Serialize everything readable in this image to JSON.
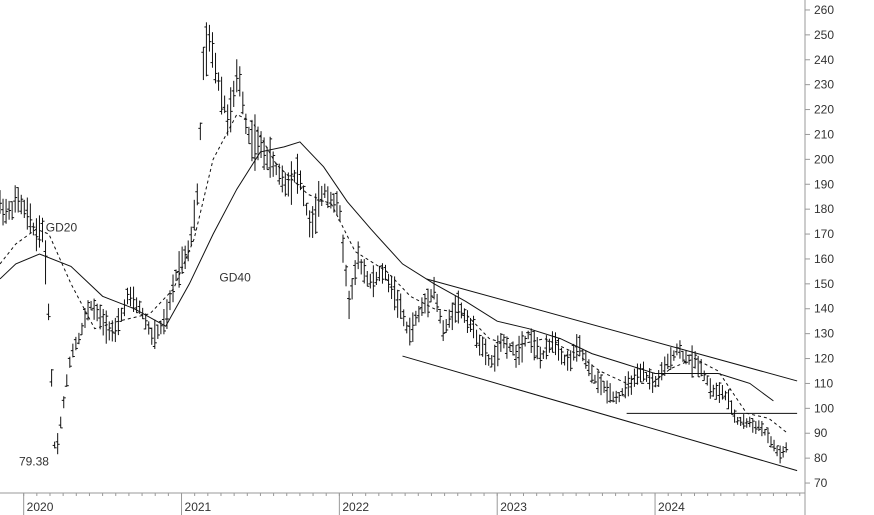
{
  "chart_data": {
    "type": "ohlc",
    "title": "",
    "xlabel": "",
    "ylabel": "",
    "ylim": [
      66,
      264
    ],
    "xlim": [
      2019.85,
      2024.95
    ],
    "y_ticks": [
      70,
      80,
      90,
      100,
      110,
      120,
      130,
      140,
      150,
      160,
      170,
      180,
      190,
      200,
      210,
      220,
      230,
      240,
      250,
      260
    ],
    "x_ticks": [
      {
        "label": "2020",
        "x": 2020.0
      },
      {
        "label": "2021",
        "x": 2021.0
      },
      {
        "label": "2022",
        "x": 2022.0
      },
      {
        "label": "2023",
        "x": 2023.0
      },
      {
        "label": "2024",
        "x": 2024.0
      }
    ],
    "grid": false,
    "colors": {
      "price": "#111111",
      "lines": "#111111",
      "axis": "#999999"
    },
    "price_points": [
      [
        2019.85,
        182
      ],
      [
        2019.9,
        178
      ],
      [
        2019.96,
        184
      ],
      [
        2020.02,
        178
      ],
      [
        2020.08,
        170
      ],
      [
        2020.12,
        172
      ],
      [
        2020.15,
        150
      ],
      [
        2020.2,
        80
      ],
      [
        2020.26,
        105
      ],
      [
        2020.3,
        122
      ],
      [
        2020.36,
        130
      ],
      [
        2020.42,
        142
      ],
      [
        2020.5,
        135
      ],
      [
        2020.58,
        130
      ],
      [
        2020.66,
        145
      ],
      [
        2020.74,
        140
      ],
      [
        2020.82,
        128
      ],
      [
        2020.9,
        135
      ],
      [
        2020.97,
        155
      ],
      [
        2021.05,
        165
      ],
      [
        2021.1,
        185
      ],
      [
        2021.14,
        240
      ],
      [
        2021.18,
        248
      ],
      [
        2021.24,
        230
      ],
      [
        2021.3,
        215
      ],
      [
        2021.36,
        235
      ],
      [
        2021.42,
        210
      ],
      [
        2021.5,
        205
      ],
      [
        2021.58,
        198
      ],
      [
        2021.66,
        190
      ],
      [
        2021.74,
        195
      ],
      [
        2021.82,
        172
      ],
      [
        2021.9,
        188
      ],
      [
        2022.0,
        180
      ],
      [
        2022.06,
        142
      ],
      [
        2022.12,
        160
      ],
      [
        2022.2,
        150
      ],
      [
        2022.28,
        155
      ],
      [
        2022.36,
        145
      ],
      [
        2022.44,
        130
      ],
      [
        2022.52,
        140
      ],
      [
        2022.6,
        148
      ],
      [
        2022.66,
        130
      ],
      [
        2022.74,
        142
      ],
      [
        2022.82,
        135
      ],
      [
        2022.9,
        125
      ],
      [
        2022.96,
        118
      ],
      [
        2023.04,
        127
      ],
      [
        2023.12,
        122
      ],
      [
        2023.2,
        130
      ],
      [
        2023.28,
        120
      ],
      [
        2023.36,
        128
      ],
      [
        2023.44,
        118
      ],
      [
        2023.52,
        125
      ],
      [
        2023.6,
        113
      ],
      [
        2023.68,
        108
      ],
      [
        2023.76,
        104
      ],
      [
        2023.84,
        110
      ],
      [
        2023.92,
        114
      ],
      [
        2024.0,
        110
      ],
      [
        2024.08,
        118
      ],
      [
        2024.14,
        124
      ],
      [
        2024.2,
        120
      ],
      [
        2024.28,
        118
      ],
      [
        2024.36,
        107
      ],
      [
        2024.44,
        106
      ],
      [
        2024.52,
        95
      ],
      [
        2024.6,
        94
      ],
      [
        2024.68,
        92
      ],
      [
        2024.76,
        84
      ],
      [
        2024.8,
        81
      ],
      [
        2024.84,
        85
      ]
    ],
    "series": [
      {
        "name": "GD20",
        "style": "dashed",
        "points": [
          [
            2019.85,
            158
          ],
          [
            2019.95,
            166
          ],
          [
            2020.08,
            172
          ],
          [
            2020.16,
            170
          ],
          [
            2020.3,
            150
          ],
          [
            2020.45,
            132
          ],
          [
            2020.6,
            135
          ],
          [
            2020.8,
            138
          ],
          [
            2020.95,
            148
          ],
          [
            2021.08,
            168
          ],
          [
            2021.2,
            200
          ],
          [
            2021.35,
            218
          ],
          [
            2021.45,
            215
          ],
          [
            2021.6,
            198
          ],
          [
            2021.8,
            186
          ],
          [
            2021.95,
            182
          ],
          [
            2022.1,
            163
          ],
          [
            2022.3,
            155
          ],
          [
            2022.45,
            145
          ],
          [
            2022.6,
            140
          ],
          [
            2022.8,
            138
          ],
          [
            2022.95,
            128
          ],
          [
            2023.1,
            125
          ],
          [
            2023.3,
            128
          ],
          [
            2023.5,
            122
          ],
          [
            2023.65,
            115
          ],
          [
            2023.82,
            110
          ],
          [
            2023.98,
            110
          ],
          [
            2024.1,
            116
          ],
          [
            2024.25,
            120
          ],
          [
            2024.4,
            115
          ],
          [
            2024.58,
            98
          ],
          [
            2024.72,
            96
          ],
          [
            2024.84,
            90
          ]
        ]
      },
      {
        "name": "GD40",
        "style": "solid",
        "points": [
          [
            2019.85,
            152
          ],
          [
            2019.95,
            158
          ],
          [
            2020.1,
            162
          ],
          [
            2020.3,
            157
          ],
          [
            2020.5,
            145
          ],
          [
            2020.7,
            140
          ],
          [
            2020.9,
            133
          ],
          [
            2021.05,
            150
          ],
          [
            2021.2,
            170
          ],
          [
            2021.35,
            188
          ],
          [
            2021.5,
            203
          ],
          [
            2021.65,
            205
          ],
          [
            2021.75,
            207
          ],
          [
            2021.9,
            197
          ],
          [
            2022.05,
            183
          ],
          [
            2022.2,
            172
          ],
          [
            2022.4,
            158
          ],
          [
            2022.6,
            150
          ],
          [
            2022.8,
            143
          ],
          [
            2023.0,
            135
          ],
          [
            2023.2,
            132
          ],
          [
            2023.4,
            128
          ],
          [
            2023.6,
            122
          ],
          [
            2023.8,
            118
          ],
          [
            2024.0,
            114
          ],
          [
            2024.2,
            114
          ],
          [
            2024.4,
            114
          ],
          [
            2024.6,
            110
          ],
          [
            2024.75,
            103
          ]
        ]
      }
    ],
    "trendlines": [
      {
        "points": [
          [
            2022.55,
            152
          ],
          [
            2024.9,
            111
          ]
        ]
      },
      {
        "points": [
          [
            2022.4,
            121
          ],
          [
            2024.9,
            75
          ]
        ]
      },
      {
        "points": [
          [
            2023.82,
            98
          ],
          [
            2024.9,
            98
          ]
        ]
      }
    ],
    "annotations": [
      {
        "text": "GD20",
        "x": 2020.14,
        "y": 171
      },
      {
        "text": "GD40",
        "x": 2021.24,
        "y": 151
      },
      {
        "text": "79.38",
        "x": 2019.97,
        "y": 77
      }
    ]
  }
}
